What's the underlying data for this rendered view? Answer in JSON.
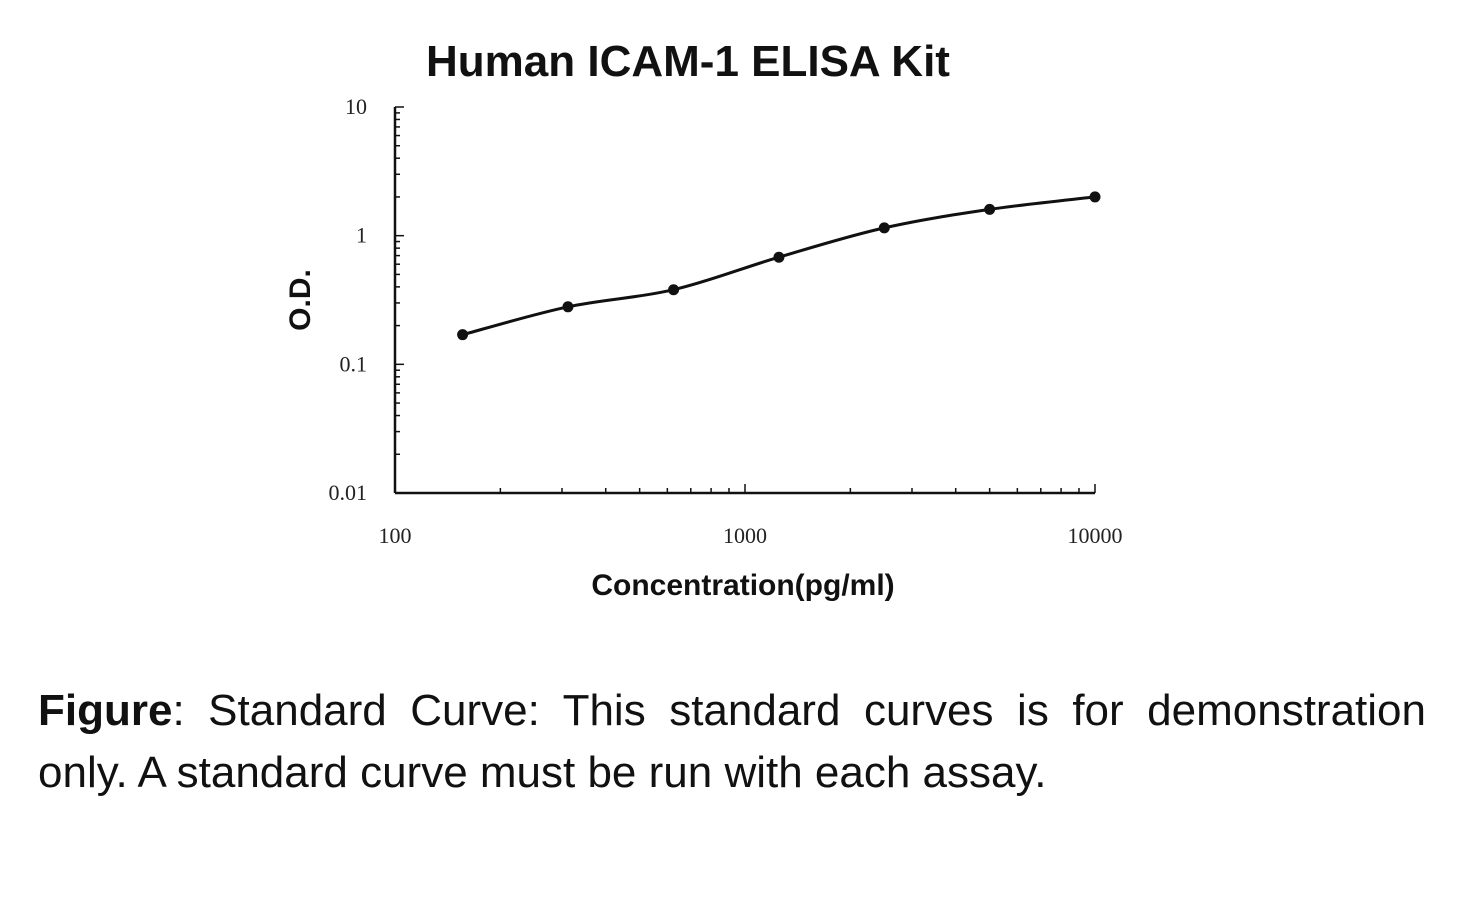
{
  "chart_data": {
    "type": "line",
    "title": "Human ICAM-1 ELISA Kit",
    "xlabel": "Concentration(pg/ml)",
    "ylabel": "O.D.",
    "x_scale": "log",
    "y_scale": "log",
    "xlim": [
      100,
      10000
    ],
    "ylim": [
      0.01,
      10
    ],
    "x_ticks": [
      {
        "value": 100,
        "label": "100"
      },
      {
        "value": 1000,
        "label": "1000"
      },
      {
        "value": 10000,
        "label": "10000"
      }
    ],
    "y_ticks": [
      {
        "value": 10,
        "label": "10"
      },
      {
        "value": 1,
        "label": "1"
      },
      {
        "value": 0.1,
        "label": "0.1"
      },
      {
        "value": 0.01,
        "label": "0.01"
      }
    ],
    "grid": false,
    "legend": "none",
    "line_color": "#111111",
    "series": [
      {
        "x": [
          156,
          312,
          625,
          1250,
          2500,
          5000,
          10000
        ],
        "y": [
          0.17,
          0.28,
          0.38,
          0.68,
          1.15,
          1.6,
          2.0
        ]
      }
    ]
  },
  "caption": {
    "lead": "Figure",
    "text": ": Standard Curve: This standard curves is for demonstration only. A standard curve must be run with each assay."
  }
}
